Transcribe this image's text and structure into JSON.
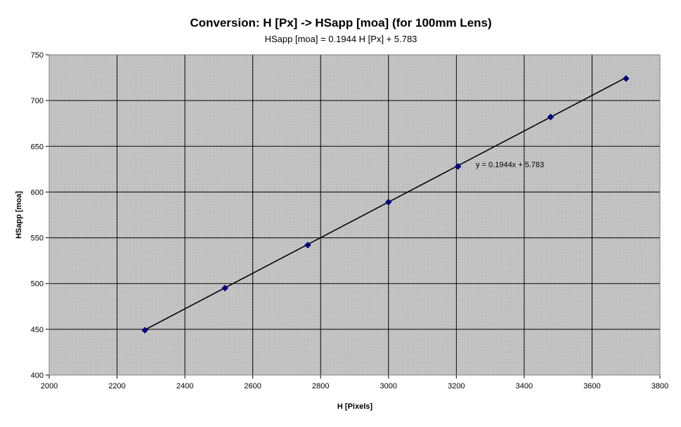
{
  "chart_data": {
    "type": "scatter",
    "title": "Conversion: H [Px] -> HSapp [moa] (for 100mm Lens)",
    "subtitle": "HSapp [moa]  =  0.1944 H [Px] +  5.783",
    "xlabel": "H [Pixels]",
    "ylabel": "HSapp [moa]",
    "xlim": [
      2000,
      3800
    ],
    "ylim": [
      400,
      750
    ],
    "x_ticks": [
      2000,
      2200,
      2400,
      2600,
      2800,
      3000,
      3200,
      3400,
      3600,
      3800
    ],
    "y_ticks": [
      400,
      450,
      500,
      550,
      600,
      650,
      700,
      750
    ],
    "grid": true,
    "legend": "none",
    "series": [
      {
        "x": [
          2282,
          2518,
          2762,
          3000,
          3205,
          3478,
          3700
        ],
        "y": [
          449,
          495,
          542,
          589,
          628,
          682,
          724
        ],
        "marker": "diamond",
        "color": "#000080"
      }
    ],
    "trendline": {
      "equation": "y = 0.1944x + 5.783",
      "slope": 0.1944,
      "intercept": 5.783,
      "x_range": [
        2282,
        3700
      ],
      "color": "#000000"
    },
    "plot_background": "#c0c0c0",
    "gridline_color": "#000000"
  }
}
